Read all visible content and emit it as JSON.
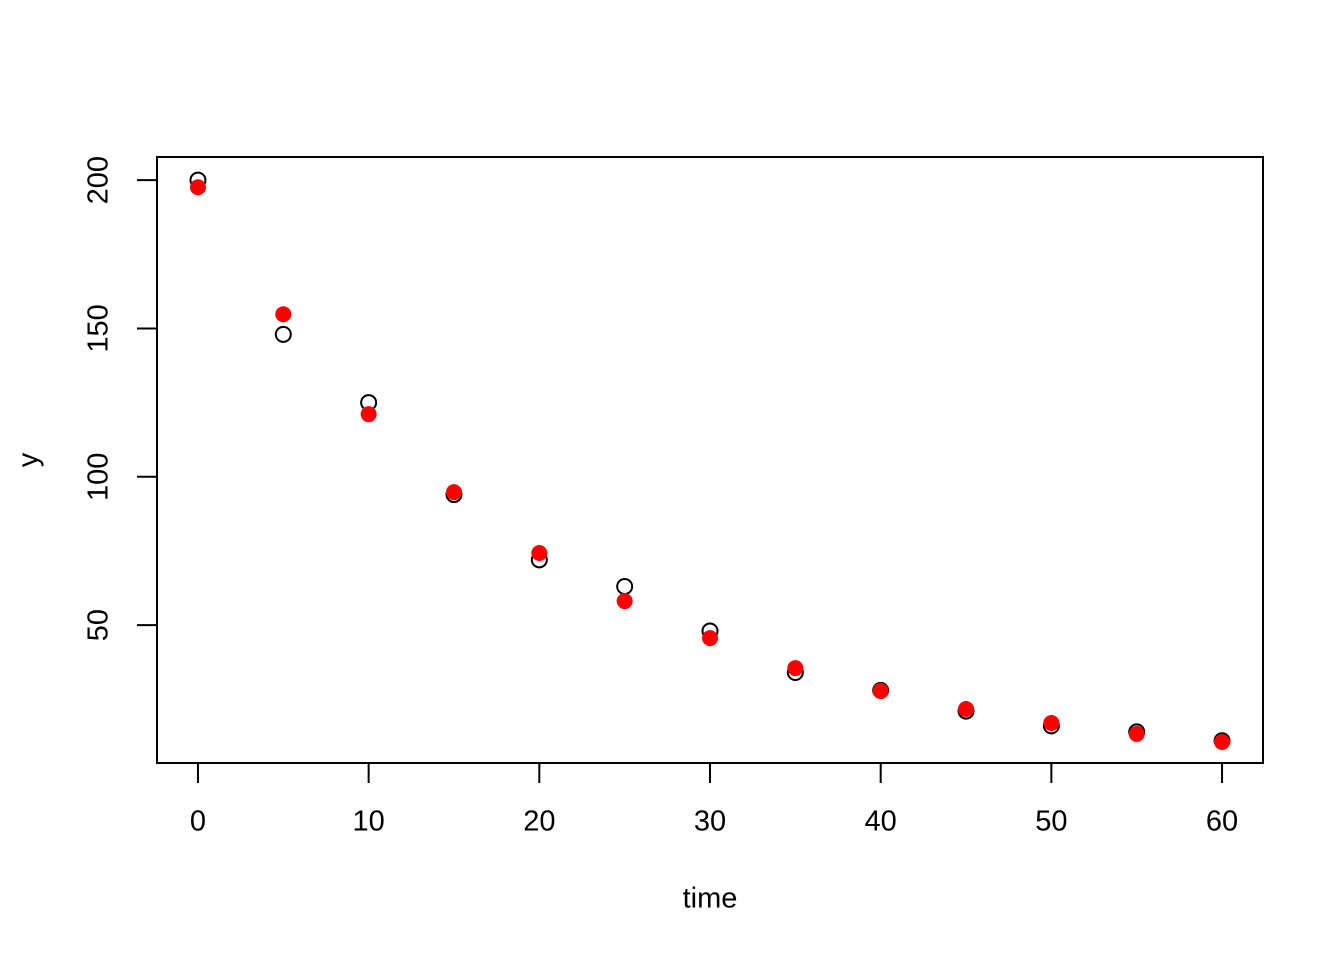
{
  "chart_data": {
    "type": "scatter",
    "x_label": "time",
    "y_label": "y",
    "x": [
      0,
      5,
      10,
      15,
      20,
      25,
      30,
      35,
      40,
      45,
      50,
      55,
      60
    ],
    "series": [
      {
        "color": "#000000",
        "marker": "open",
        "values": [
          200,
          148,
          125,
          94,
          72,
          63,
          48,
          34,
          28,
          21,
          16,
          14,
          11
        ]
      },
      {
        "color": "#ff0000",
        "marker": "filled",
        "values": [
          197.6,
          154.8,
          121.1,
          94.8,
          74.3,
          58.1,
          45.6,
          35.5,
          27.8,
          21.7,
          17.0,
          13.3,
          10.6
        ]
      }
    ],
    "xlim": [
      -2.4,
      62.4
    ],
    "ylim": [
      3.5,
      207.8
    ],
    "xticks": [
      0,
      10,
      20,
      30,
      40,
      50,
      60
    ],
    "yticks": [
      50,
      100,
      150,
      200
    ],
    "grid": false
  }
}
